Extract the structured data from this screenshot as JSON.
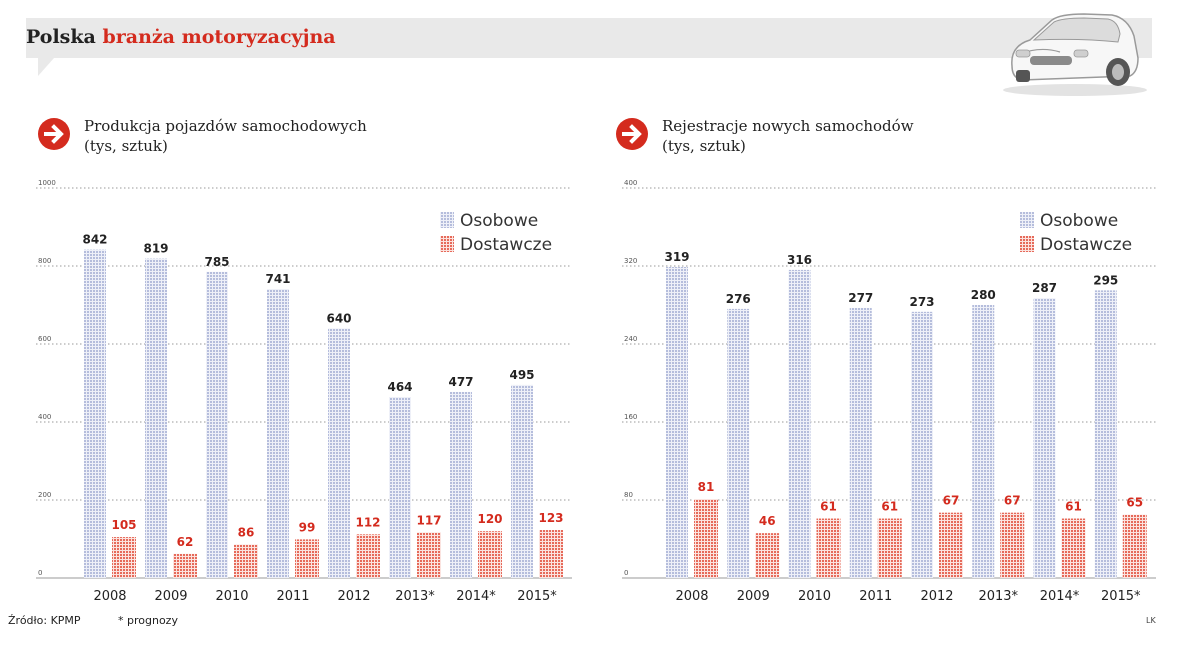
{
  "header": {
    "title_part1": "Polska",
    "title_part2": "branża motoryzacyjna"
  },
  "colors": {
    "accent": "#d42b1e",
    "osobowe": "#b5bddc",
    "dostawcze": "#e66a5a",
    "band": "#e9e9e9"
  },
  "icons": [
    "arrow-right-icon",
    "car-icon"
  ],
  "legend": {
    "osobowe": "Osobowe",
    "dostawcze": "Dostawcze"
  },
  "left_panel": {
    "title_line1": "Produkcja pojazdów samochodowych",
    "title_line2": "(tys, sztuk)"
  },
  "right_panel": {
    "title_line1": "Rejestracje nowych samochodów",
    "title_line2": "(tys, sztuk)"
  },
  "footer": {
    "source": "Źródło: KPMP",
    "note": "* prognozy",
    "author": "LK"
  },
  "chart_data": [
    {
      "type": "bar",
      "title": "Produkcja pojazdów samochodowych (tys, sztuk)",
      "categories": [
        "2008",
        "2009",
        "2010",
        "2011",
        "2012",
        "2013*",
        "2014*",
        "2015*"
      ],
      "series": [
        {
          "name": "Osobowe",
          "values": [
            842,
            819,
            785,
            741,
            640,
            464,
            477,
            495
          ]
        },
        {
          "name": "Dostawcze",
          "values": [
            105,
            62,
            86,
            99,
            112,
            117,
            120,
            123
          ]
        }
      ],
      "yticks": [
        0,
        200,
        400,
        600,
        800,
        1000
      ],
      "ylim": [
        0,
        1000
      ],
      "grid": true,
      "legend_position": "top-right"
    },
    {
      "type": "bar",
      "title": "Rejestracje nowych samochodów (tys, sztuk)",
      "categories": [
        "2008",
        "2009",
        "2010",
        "2011",
        "2012",
        "2013*",
        "2014*",
        "2015*"
      ],
      "series": [
        {
          "name": "Osobowe",
          "values": [
            319,
            276,
            316,
            277,
            273,
            280,
            287,
            295
          ]
        },
        {
          "name": "Dostawcze",
          "values": [
            81,
            46,
            61,
            61,
            67,
            67,
            61,
            65
          ]
        }
      ],
      "yticks": [
        0,
        80,
        160,
        240,
        320,
        400
      ],
      "ylim": [
        0,
        400
      ],
      "grid": true,
      "legend_position": "top-right"
    }
  ]
}
